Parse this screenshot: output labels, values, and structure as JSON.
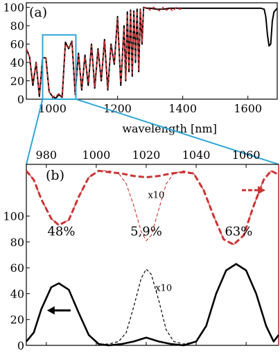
{
  "chart_data": [
    {
      "panel_label": "(a)",
      "type": "line",
      "xlabel": "wavelength [nm]",
      "ylabel": "",
      "xlim": [
        920,
        1690
      ],
      "ylim": [
        0,
        105
      ],
      "x_ticks": [
        1000,
        1200,
        1400,
        1600
      ],
      "y_ticks": [
        0,
        20,
        40,
        60,
        80,
        100
      ],
      "series": [
        {
          "color": "#000000",
          "style": "solid",
          "x": [
            920,
            930,
            940,
            950,
            960,
            970,
            980,
            990,
            1000,
            1010,
            1020,
            1030,
            1040,
            1050,
            1060,
            1070,
            1080,
            1090,
            1100,
            1110,
            1120,
            1130,
            1140,
            1150,
            1160,
            1170,
            1180,
            1190,
            1200,
            1210,
            1220,
            1225,
            1230,
            1235,
            1240,
            1245,
            1250,
            1255,
            1260,
            1265,
            1270,
            1275,
            1280,
            1290,
            1300,
            1320,
            1340,
            1360,
            1380,
            1400,
            1450,
            1500,
            1550,
            1600,
            1640,
            1650,
            1655,
            1660,
            1665,
            1670,
            1675,
            1680,
            1690
          ],
          "y": [
            55,
            46,
            15,
            40,
            3,
            45,
            45,
            8,
            3,
            1,
            5,
            2,
            62,
            55,
            63,
            5,
            50,
            10,
            48,
            15,
            60,
            12,
            55,
            20,
            65,
            10,
            60,
            38,
            90,
            15,
            80,
            20,
            95,
            30,
            97,
            25,
            96,
            40,
            98,
            30,
            98,
            60,
            100,
            99,
            99,
            98,
            98,
            99,
            99,
            99,
            99,
            99,
            99,
            99,
            99,
            98,
            90,
            70,
            58,
            60,
            85,
            95,
            99
          ]
        },
        {
          "color": "#cc3333",
          "style": "dashed",
          "x": [
            920,
            930,
            940,
            950,
            960,
            970,
            980,
            990,
            1000,
            1010,
            1020,
            1030,
            1040,
            1050,
            1060,
            1070,
            1080,
            1090,
            1100,
            1110,
            1120,
            1130,
            1140,
            1150,
            1160,
            1170,
            1180,
            1190,
            1200,
            1210,
            1220,
            1225,
            1230,
            1235,
            1240,
            1245,
            1250,
            1255,
            1260,
            1265,
            1270,
            1275,
            1280,
            1290,
            1300,
            1310,
            1320,
            1330,
            1340,
            1350,
            1360,
            1370,
            1380,
            1390,
            1400
          ],
          "y": [
            55,
            46,
            18,
            40,
            5,
            45,
            45,
            8,
            3,
            3,
            6,
            3,
            60,
            55,
            62,
            6,
            48,
            12,
            46,
            18,
            58,
            14,
            53,
            22,
            63,
            12,
            58,
            40,
            88,
            18,
            78,
            22,
            93,
            32,
            95,
            28,
            94,
            42,
            96,
            32,
            97,
            62,
            99,
            100,
            97,
            100,
            98,
            96,
            100,
            97,
            99,
            96,
            100,
            98,
            99
          ]
        }
      ],
      "zoom_window": {
        "x": [
          970,
          1072
        ],
        "y": [
          0,
          70
        ]
      }
    },
    {
      "panel_label": "(b)",
      "type": "line",
      "xlabel": "",
      "ylabel": "",
      "xlim": [
        972,
        1073
      ],
      "ylim": [
        0,
        140
      ],
      "x_ticks": [
        980,
        1000,
        1020,
        1040,
        1060
      ],
      "y_ticks": [
        0,
        20,
        40,
        60,
        80,
        100
      ],
      "series": [
        {
          "color": "#000000",
          "style": "solid",
          "x": [
            972,
            975,
            978,
            982,
            985,
            989,
            993,
            997,
            1001,
            1005,
            1010,
            1015,
            1020,
            1025,
            1030,
            1035,
            1040,
            1044,
            1048,
            1052,
            1056,
            1060,
            1064,
            1068,
            1071,
            1073
          ],
          "y": [
            3,
            10,
            28,
            45,
            48,
            43,
            25,
            8,
            1,
            0,
            1,
            3,
            6,
            3,
            1,
            0,
            3,
            15,
            40,
            58,
            63,
            58,
            40,
            15,
            3,
            8
          ]
        },
        {
          "color": "#000000",
          "style": "dashed",
          "x": [
            972,
            975,
            978,
            982,
            985,
            989,
            993,
            997,
            1001,
            1005,
            1009,
            1012,
            1015,
            1018,
            1020,
            1022,
            1025,
            1028,
            1031,
            1035,
            1040,
            1044,
            1048,
            1052,
            1056,
            1060,
            1064,
            1068,
            1071,
            1073
          ],
          "y": [
            3,
            10,
            28,
            45,
            48,
            43,
            25,
            8,
            1,
            1,
            3,
            10,
            30,
            52,
            59,
            55,
            35,
            12,
            3,
            1,
            3,
            15,
            40,
            58,
            63,
            58,
            40,
            15,
            3,
            8
          ]
        },
        {
          "color": "#cc3333",
          "style": "dashed",
          "x": [
            972,
            975,
            978,
            982,
            985,
            989,
            993,
            997,
            1001,
            1005,
            1010,
            1015,
            1020,
            1025,
            1030,
            1035,
            1039,
            1043,
            1047,
            1051,
            1055,
            1059,
            1063,
            1067,
            1070,
            1073
          ],
          "y": [
            135,
            128,
            113,
            98,
            93,
            97,
            115,
            130,
            135,
            134,
            133,
            131,
            130,
            131,
            133,
            134,
            133,
            120,
            100,
            82,
            78,
            85,
            108,
            128,
            135,
            132
          ]
        },
        {
          "color": "#cc3333",
          "style": "thin-dashed",
          "x": [
            972,
            975,
            978,
            982,
            985,
            989,
            993,
            997,
            1001,
            1005,
            1009,
            1012,
            1015,
            1018,
            1020,
            1022,
            1025,
            1028,
            1031,
            1035,
            1039,
            1043,
            1047,
            1051,
            1055,
            1059,
            1063,
            1067,
            1070,
            1073
          ],
          "y": [
            135,
            128,
            113,
            98,
            93,
            97,
            115,
            130,
            135,
            135,
            133,
            125,
            108,
            88,
            81,
            85,
            105,
            125,
            133,
            135,
            133,
            120,
            100,
            82,
            78,
            85,
            108,
            128,
            135,
            132
          ]
        }
      ],
      "annotations": [
        {
          "text": "48%",
          "x": 986,
          "y": 85
        },
        {
          "text": "5,9%",
          "x": 1020,
          "y": 85
        },
        {
          "text": "63%",
          "x": 1057,
          "y": 85
        },
        {
          "text": "x10",
          "x": 1027,
          "y": 42
        },
        {
          "text": "x10",
          "x": 1024,
          "y": 114
        }
      ],
      "arrows": [
        {
          "direction": "left",
          "color": "#000000",
          "x": 985,
          "y": 27
        },
        {
          "direction": "right",
          "color": "#cc3333",
          "x": 1063,
          "y": 120
        }
      ]
    }
  ]
}
